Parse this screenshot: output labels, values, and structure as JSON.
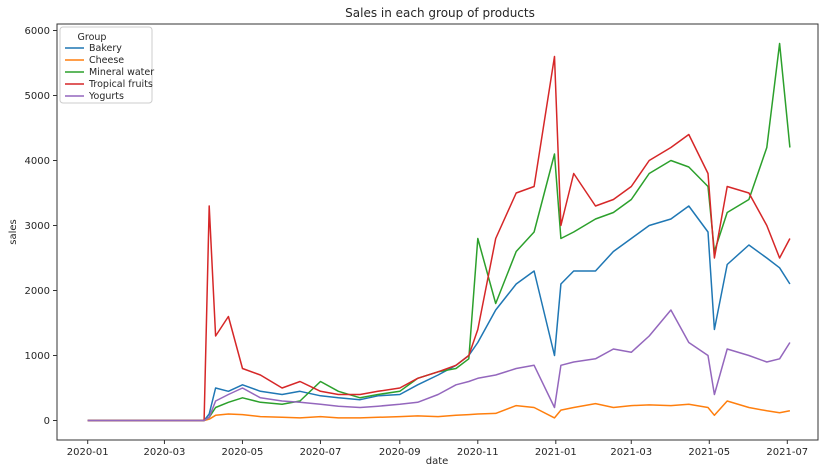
{
  "chart_data": {
    "type": "line",
    "title": "Sales in each group of products",
    "xlabel": "date",
    "ylabel": "sales",
    "ylim": [
      -300,
      6100
    ],
    "xlim": [
      "2019-12-08",
      "2021-07-25"
    ],
    "grid": false,
    "legend": {
      "title": "Group",
      "placement": "top-left"
    },
    "y_ticks": [
      0,
      1000,
      2000,
      3000,
      4000,
      5000,
      6000
    ],
    "x_ticks": [
      "2020-01",
      "2020-03",
      "2020-05",
      "2020-07",
      "2020-09",
      "2020-11",
      "2021-01",
      "2021-03",
      "2021-05",
      "2021-07"
    ],
    "x": [
      "2020-01-01",
      "2020-02-01",
      "2020-03-01",
      "2020-04-01",
      "2020-04-05",
      "2020-04-10",
      "2020-04-20",
      "2020-05-01",
      "2020-05-15",
      "2020-06-01",
      "2020-06-15",
      "2020-07-01",
      "2020-07-15",
      "2020-08-01",
      "2020-08-15",
      "2020-09-01",
      "2020-09-15",
      "2020-10-01",
      "2020-10-15",
      "2020-10-25",
      "2020-11-01",
      "2020-11-15",
      "2020-12-01",
      "2020-12-15",
      "2020-12-31",
      "2021-01-05",
      "2021-01-15",
      "2021-02-01",
      "2021-02-15",
      "2021-03-01",
      "2021-03-15",
      "2021-04-01",
      "2021-04-15",
      "2021-04-30",
      "2021-05-05",
      "2021-05-15",
      "2021-06-01",
      "2021-06-15",
      "2021-06-25",
      "2021-07-03"
    ],
    "series": [
      {
        "name": "Bakery",
        "color": "#1f77b4",
        "values": [
          0,
          0,
          0,
          0,
          100,
          500,
          450,
          550,
          450,
          400,
          450,
          380,
          350,
          320,
          380,
          400,
          550,
          700,
          850,
          1000,
          1200,
          1700,
          2100,
          2300,
          1000,
          2100,
          2300,
          2300,
          2600,
          2800,
          3000,
          3100,
          3300,
          2900,
          1400,
          2400,
          2700,
          2500,
          2350,
          2100
        ]
      },
      {
        "name": "Cheese",
        "color": "#ff7f0e",
        "values": [
          0,
          0,
          0,
          0,
          20,
          80,
          100,
          90,
          60,
          50,
          40,
          60,
          40,
          40,
          50,
          60,
          70,
          60,
          80,
          90,
          100,
          110,
          230,
          200,
          40,
          160,
          200,
          260,
          200,
          230,
          240,
          230,
          250,
          200,
          80,
          300,
          200,
          150,
          120,
          150
        ]
      },
      {
        "name": "Mineral water",
        "color": "#2ca02c",
        "values": [
          0,
          0,
          0,
          0,
          50,
          200,
          280,
          350,
          280,
          250,
          300,
          600,
          450,
          350,
          400,
          450,
          650,
          750,
          800,
          950,
          2800,
          1800,
          2600,
          2900,
          4100,
          2800,
          2900,
          3100,
          3200,
          3400,
          3800,
          4000,
          3900,
          3600,
          2600,
          3200,
          3400,
          4200,
          5800,
          4200
        ]
      },
      {
        "name": "Tropical fruits",
        "color": "#d62728",
        "values": [
          0,
          0,
          0,
          0,
          3300,
          1300,
          1600,
          800,
          700,
          500,
          600,
          450,
          400,
          400,
          450,
          500,
          650,
          750,
          850,
          1000,
          1400,
          2800,
          3500,
          3600,
          5600,
          3000,
          3800,
          3300,
          3400,
          3600,
          4000,
          4200,
          4400,
          3800,
          2500,
          3600,
          3500,
          3000,
          2500,
          2800
        ]
      },
      {
        "name": "Yogurts",
        "color": "#9467bd",
        "values": [
          0,
          0,
          0,
          0,
          50,
          300,
          400,
          500,
          350,
          300,
          280,
          250,
          220,
          200,
          220,
          250,
          280,
          400,
          550,
          600,
          650,
          700,
          800,
          850,
          200,
          850,
          900,
          950,
          1100,
          1050,
          1300,
          1700,
          1200,
          1000,
          400,
          1100,
          1000,
          900,
          950,
          1200
        ]
      }
    ]
  }
}
